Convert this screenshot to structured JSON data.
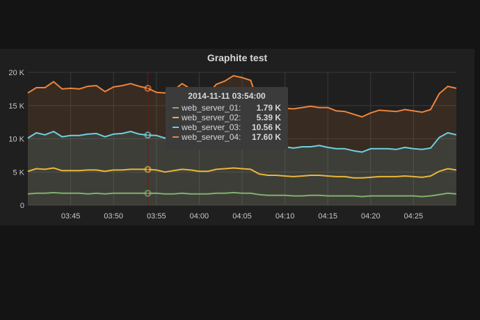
{
  "panel": {
    "title": "Graphite test"
  },
  "tooltip": {
    "time": "2014-11-11 03:54:00",
    "rows": [
      {
        "name": "web_server_01:",
        "value": "1.79 K",
        "color": "#7eb26d"
      },
      {
        "name": "web_server_02:",
        "value": "5.39 K",
        "color": "#eab839"
      },
      {
        "name": "web_server_03:",
        "value": "10.56 K",
        "color": "#6ed0e0"
      },
      {
        "name": "web_server_04:",
        "value": "17.60 K",
        "color": "#ef843c"
      }
    ]
  },
  "chart_data": {
    "type": "line",
    "title": "Graphite test",
    "ylim": [
      0,
      20000
    ],
    "y_ticks": [
      {
        "value": 0,
        "label": "0"
      },
      {
        "value": 5000,
        "label": "5 K"
      },
      {
        "value": 10000,
        "label": "10 K"
      },
      {
        "value": 15000,
        "label": "15 K"
      },
      {
        "value": 20000,
        "label": "20 K"
      }
    ],
    "x_range": [
      "03:40",
      "04:30"
    ],
    "x_ticks": [
      "03:45",
      "03:50",
      "03:55",
      "04:00",
      "04:05",
      "04:10",
      "04:15",
      "04:20",
      "04:25"
    ],
    "grid": true,
    "stacked": false,
    "hover_time": "03:54",
    "series": [
      {
        "name": "web_server_04",
        "color": "#ef843c",
        "fill": true,
        "x": [
          "03:40",
          "03:41",
          "03:42",
          "03:43",
          "03:44",
          "03:45",
          "03:46",
          "03:47",
          "03:48",
          "03:49",
          "03:50",
          "03:51",
          "03:52",
          "03:53",
          "03:54",
          "03:55",
          "03:56",
          "03:57",
          "03:58",
          "03:59",
          "04:00",
          "04:01",
          "04:02",
          "04:03",
          "04:04",
          "04:05",
          "04:06",
          "04:07",
          "04:08",
          "04:09",
          "04:10",
          "04:11",
          "04:12",
          "04:13",
          "04:14",
          "04:15",
          "04:16",
          "04:17",
          "04:18",
          "04:19",
          "04:20",
          "04:21",
          "04:22",
          "04:23",
          "04:24",
          "04:25",
          "04:26",
          "04:27",
          "04:28",
          "04:29",
          "04:30"
        ],
        "y": [
          16900,
          17700,
          17700,
          18600,
          17500,
          17600,
          17500,
          17900,
          18000,
          17100,
          17800,
          18000,
          18300,
          17900,
          17600,
          17000,
          16900,
          17300,
          18300,
          17500,
          16700,
          16700,
          18200,
          18700,
          19500,
          19200,
          18800,
          15100,
          14500,
          14900,
          14600,
          14500,
          14700,
          14900,
          14700,
          14700,
          14200,
          14100,
          13700,
          13300,
          13900,
          14300,
          14200,
          14100,
          14400,
          14200,
          14000,
          14400,
          16800,
          17900,
          17600
        ]
      },
      {
        "name": "web_server_03",
        "color": "#6ed0e0",
        "fill": true,
        "x": [
          "03:40",
          "03:41",
          "03:42",
          "03:43",
          "03:44",
          "03:45",
          "03:46",
          "03:47",
          "03:48",
          "03:49",
          "03:50",
          "03:51",
          "03:52",
          "03:53",
          "03:54",
          "03:55",
          "03:56",
          "03:57",
          "03:58",
          "03:59",
          "04:00",
          "04:01",
          "04:02",
          "04:03",
          "04:04",
          "04:05",
          "04:06",
          "04:07",
          "04:08",
          "04:09",
          "04:10",
          "04:11",
          "04:12",
          "04:13",
          "04:14",
          "04:15",
          "04:16",
          "04:17",
          "04:18",
          "04:19",
          "04:20",
          "04:21",
          "04:22",
          "04:23",
          "04:24",
          "04:25",
          "04:26",
          "04:27",
          "04:28",
          "04:29",
          "04:30"
        ],
        "y": [
          10100,
          10900,
          10600,
          11100,
          10300,
          10500,
          10500,
          10700,
          10800,
          10300,
          10700,
          10800,
          11100,
          10700,
          10560,
          10500,
          10100,
          10500,
          10800,
          10600,
          10200,
          10100,
          10900,
          11300,
          11600,
          11600,
          11400,
          9800,
          9200,
          9000,
          8800,
          8600,
          8800,
          8800,
          9000,
          8700,
          8500,
          8500,
          8200,
          8000,
          8500,
          8500,
          8500,
          8400,
          8700,
          8500,
          8400,
          8600,
          10200,
          10900,
          10600
        ]
      },
      {
        "name": "web_server_02",
        "color": "#eab839",
        "fill": false,
        "x": [
          "03:40",
          "03:41",
          "03:42",
          "03:43",
          "03:44",
          "03:45",
          "03:46",
          "03:47",
          "03:48",
          "03:49",
          "03:50",
          "03:51",
          "03:52",
          "03:53",
          "03:54",
          "03:55",
          "03:56",
          "03:57",
          "03:58",
          "03:59",
          "04:00",
          "04:01",
          "04:02",
          "04:03",
          "04:04",
          "04:05",
          "04:06",
          "04:07",
          "04:08",
          "04:09",
          "04:10",
          "04:11",
          "04:12",
          "04:13",
          "04:14",
          "04:15",
          "04:16",
          "04:17",
          "04:18",
          "04:19",
          "04:20",
          "04:21",
          "04:22",
          "04:23",
          "04:24",
          "04:25",
          "04:26",
          "04:27",
          "04:28",
          "04:29",
          "04:30"
        ],
        "y": [
          5100,
          5500,
          5400,
          5600,
          5200,
          5200,
          5200,
          5300,
          5300,
          5100,
          5300,
          5300,
          5400,
          5400,
          5390,
          5300,
          5000,
          5200,
          5400,
          5300,
          5100,
          5100,
          5400,
          5500,
          5600,
          5500,
          5400,
          4700,
          4500,
          4500,
          4400,
          4300,
          4400,
          4500,
          4500,
          4400,
          4300,
          4300,
          4100,
          4100,
          4200,
          4300,
          4300,
          4300,
          4400,
          4300,
          4200,
          4400,
          5100,
          5500,
          5300
        ]
      },
      {
        "name": "web_server_01",
        "color": "#7eb26d",
        "fill": false,
        "x": [
          "03:40",
          "03:41",
          "03:42",
          "03:43",
          "03:44",
          "03:45",
          "03:46",
          "03:47",
          "03:48",
          "03:49",
          "03:50",
          "03:51",
          "03:52",
          "03:53",
          "03:54",
          "03:55",
          "03:56",
          "03:57",
          "03:58",
          "03:59",
          "04:00",
          "04:01",
          "04:02",
          "04:03",
          "04:04",
          "04:05",
          "04:06",
          "04:07",
          "04:08",
          "04:09",
          "04:10",
          "04:11",
          "04:12",
          "04:13",
          "04:14",
          "04:15",
          "04:16",
          "04:17",
          "04:18",
          "04:19",
          "04:20",
          "04:21",
          "04:22",
          "04:23",
          "04:24",
          "04:25",
          "04:26",
          "04:27",
          "04:28",
          "04:29",
          "04:30"
        ],
        "y": [
          1700,
          1800,
          1800,
          1900,
          1800,
          1800,
          1800,
          1700,
          1800,
          1700,
          1800,
          1800,
          1800,
          1800,
          1790,
          1800,
          1700,
          1700,
          1800,
          1700,
          1700,
          1700,
          1800,
          1800,
          1900,
          1800,
          1800,
          1600,
          1500,
          1500,
          1500,
          1400,
          1400,
          1500,
          1500,
          1400,
          1400,
          1400,
          1400,
          1300,
          1400,
          1400,
          1400,
          1400,
          1400,
          1400,
          1300,
          1400,
          1600,
          1800,
          1700
        ]
      }
    ]
  }
}
